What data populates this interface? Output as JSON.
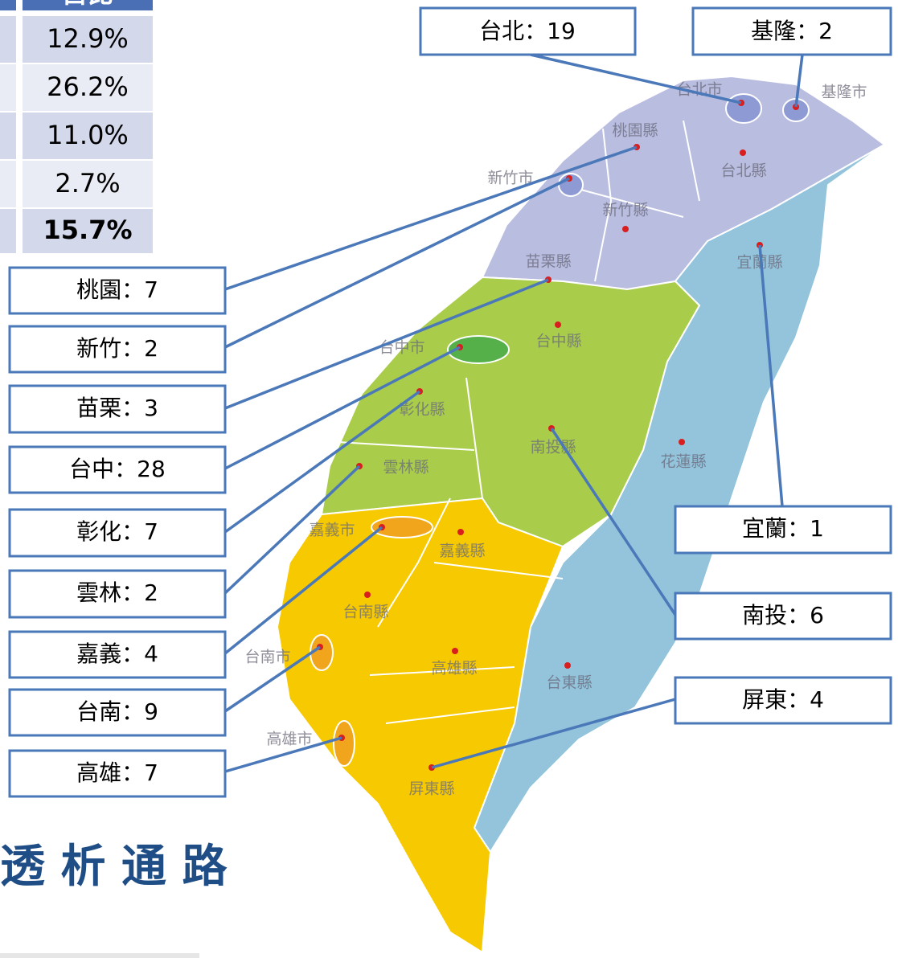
{
  "table": {
    "header": "占比",
    "rows": [
      "12.9%",
      "26.2%",
      "11.0%",
      "2.7%",
      "15.7%"
    ]
  },
  "callouts": [
    "台北：19",
    "基隆：2",
    "桃園：7",
    "新竹：2",
    "苗栗：3",
    "台中：28",
    "彰化：7",
    "雲林：2",
    "嘉義：4",
    "台南：9",
    "高雄：7",
    "宜蘭：1",
    "南投：6",
    "屏東：4"
  ],
  "map_labels": [
    "台北市",
    "基隆市",
    "桃園縣",
    "新竹市",
    "台北縣",
    "新竹縣",
    "宜蘭縣",
    "苗栗縣",
    "台中市",
    "台中縣",
    "彰化縣",
    "南投縣",
    "花蓮縣",
    "雲林縣",
    "嘉義市",
    "嘉義縣",
    "台南縣",
    "台南市",
    "高雄縣",
    "台東縣",
    "高雄市",
    "屏東縣"
  ],
  "title": "透 析 通 路"
}
